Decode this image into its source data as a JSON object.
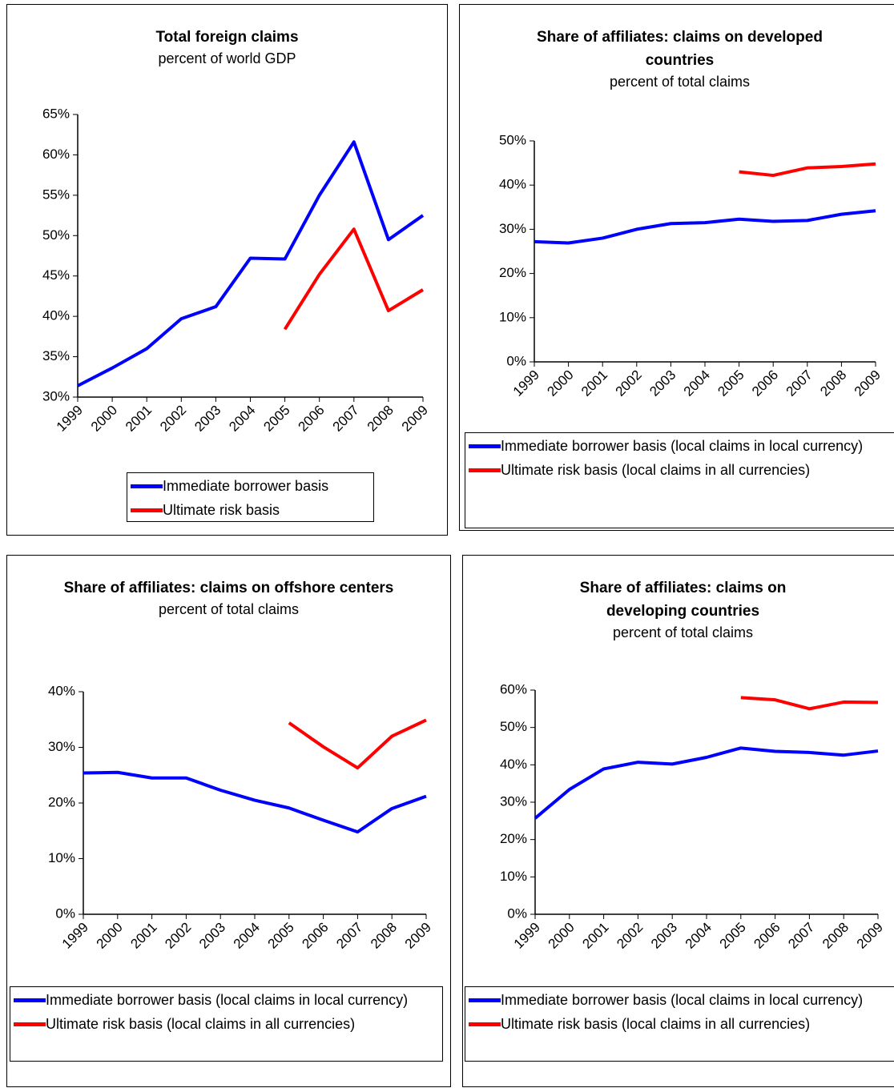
{
  "chart_data": [
    {
      "type": "line",
      "title": "Total foreign claims",
      "subtitle": "percent of world GDP",
      "categories": [
        "1999",
        "2000",
        "2001",
        "2002",
        "2003",
        "2004",
        "2005",
        "2006",
        "2007",
        "2008",
        "2009"
      ],
      "series": [
        {
          "name": "Immediate borrower basis",
          "color": "#0000ff",
          "values": [
            31.4,
            33.6,
            36.0,
            39.7,
            41.2,
            47.2,
            47.1,
            55.0,
            61.6,
            49.5,
            52.5
          ]
        },
        {
          "name": "Ultimate risk basis",
          "color": "#ff0000",
          "values": [
            null,
            null,
            null,
            null,
            null,
            null,
            38.4,
            45.2,
            50.8,
            40.7,
            43.3
          ]
        }
      ],
      "ylim": [
        30,
        65
      ],
      "yticks": [
        {
          "value": 30,
          "label": "30%"
        },
        {
          "value": 35,
          "label": "35%"
        },
        {
          "value": 40,
          "label": "40%"
        },
        {
          "value": 45,
          "label": "45%"
        },
        {
          "value": 50,
          "label": "50%"
        },
        {
          "value": 55,
          "label": "55%"
        },
        {
          "value": 60,
          "label": "60%"
        },
        {
          "value": 65,
          "label": "65%"
        }
      ]
    },
    {
      "type": "line",
      "title": "Share of affiliates: claims on developed countries",
      "subtitle": "percent of total claims",
      "categories": [
        "1999",
        "2000",
        "2001",
        "2002",
        "2003",
        "2004",
        "2005",
        "2006",
        "2007",
        "2008",
        "2009"
      ],
      "series": [
        {
          "name": "Immediate borrower basis (local claims in local currency)",
          "color": "#0000ff",
          "values": [
            27.2,
            26.9,
            28.0,
            30.0,
            31.3,
            31.5,
            32.3,
            31.8,
            32.0,
            33.4,
            34.2
          ]
        },
        {
          "name": "Ultimate risk basis (local claims in all currencies)",
          "color": "#ff0000",
          "values": [
            null,
            null,
            null,
            null,
            null,
            null,
            43.0,
            42.2,
            43.9,
            44.2,
            44.8
          ]
        }
      ],
      "ylim": [
        0,
        50
      ],
      "yticks": [
        {
          "value": 0,
          "label": "0%"
        },
        {
          "value": 10,
          "label": "10%"
        },
        {
          "value": 20,
          "label": "20%"
        },
        {
          "value": 30,
          "label": "30%"
        },
        {
          "value": 40,
          "label": "40%"
        },
        {
          "value": 50,
          "label": "50%"
        }
      ]
    },
    {
      "type": "line",
      "title": "Share of affiliates: claims on offshore centers",
      "subtitle": "percent of total claims",
      "categories": [
        "1999",
        "2000",
        "2001",
        "2002",
        "2003",
        "2004",
        "2005",
        "2006",
        "2007",
        "2008",
        "2009"
      ],
      "series": [
        {
          "name": "Immediate borrower basis (local claims in local currency)",
          "color": "#0000ff",
          "values": [
            25.4,
            25.5,
            24.5,
            24.5,
            22.3,
            20.5,
            19.1,
            16.9,
            14.8,
            19.0,
            21.2
          ]
        },
        {
          "name": "Ultimate risk basis (local claims in all currencies)",
          "color": "#ff0000",
          "values": [
            null,
            null,
            null,
            null,
            null,
            null,
            34.4,
            30.1,
            26.3,
            32.0,
            34.9
          ]
        }
      ],
      "ylim": [
        0,
        40
      ],
      "yticks": [
        {
          "value": 0,
          "label": "0%"
        },
        {
          "value": 10,
          "label": "10%"
        },
        {
          "value": 20,
          "label": "20%"
        },
        {
          "value": 30,
          "label": "30%"
        },
        {
          "value": 40,
          "label": "40%"
        }
      ]
    },
    {
      "type": "line",
      "title": "Share of affiliates: claims on developing countries",
      "subtitle": "percent of total claims",
      "categories": [
        "1999",
        "2000",
        "2001",
        "2002",
        "2003",
        "2004",
        "2005",
        "2006",
        "2007",
        "2008",
        "2009"
      ],
      "series": [
        {
          "name": "Immediate borrower basis (local claims in local currency)",
          "color": "#0000ff",
          "values": [
            25.7,
            33.4,
            38.9,
            40.7,
            40.2,
            42.0,
            44.5,
            43.6,
            43.3,
            42.6,
            43.7
          ]
        },
        {
          "name": "Ultimate risk basis (local claims in all currencies)",
          "color": "#ff0000",
          "values": [
            null,
            null,
            null,
            null,
            null,
            null,
            58.0,
            57.4,
            55.0,
            56.8,
            56.7
          ]
        }
      ],
      "ylim": [
        0,
        60
      ],
      "yticks": [
        {
          "value": 0,
          "label": "0%"
        },
        {
          "value": 10,
          "label": "10%"
        },
        {
          "value": 20,
          "label": "20%"
        },
        {
          "value": 30,
          "label": "30%"
        },
        {
          "value": 40,
          "label": "40%"
        },
        {
          "value": 50,
          "label": "50%"
        },
        {
          "value": 60,
          "label": "60%"
        }
      ]
    }
  ]
}
